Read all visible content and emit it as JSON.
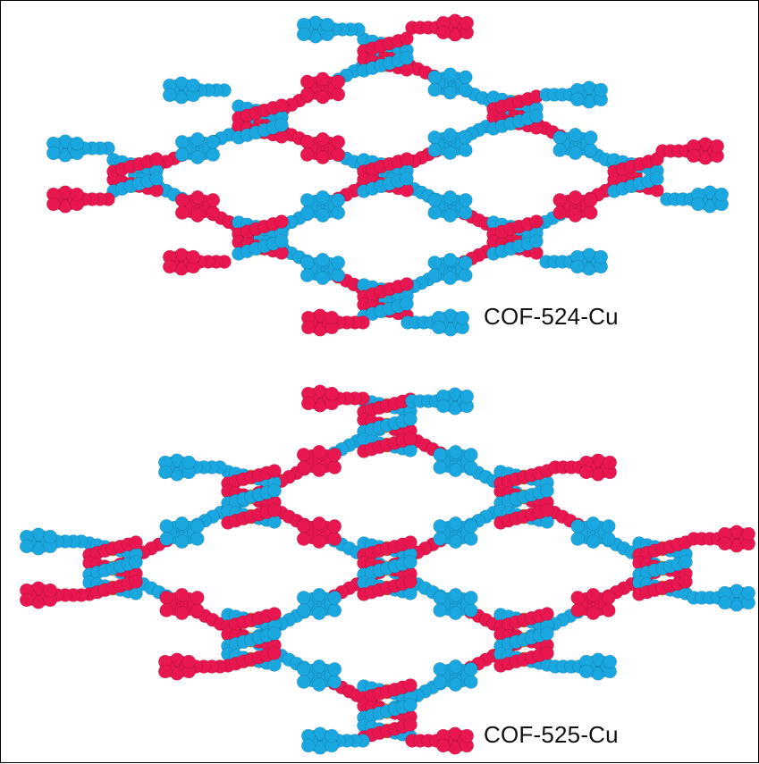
{
  "structures": [
    {
      "label": "COF-524-Cu"
    },
    {
      "label": "COF-525-Cu"
    }
  ],
  "colors": {
    "strand_a": "#e8174f",
    "strand_b": "#1aa7e0",
    "metal": "#f2a31c",
    "background": "#ffffff"
  }
}
